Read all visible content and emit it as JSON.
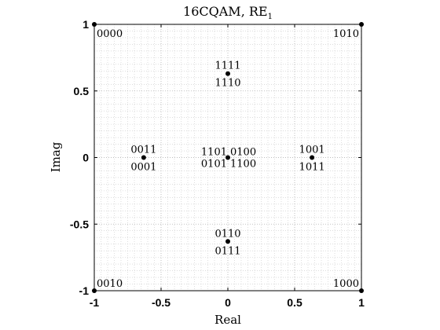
{
  "chart_data": {
    "type": "scatter",
    "title": "16CQAM, RE",
    "title_subscript": "1",
    "xlabel": "Real",
    "ylabel": "Imag",
    "xlim": [
      -1,
      1
    ],
    "ylim": [
      -1,
      1
    ],
    "x_ticks": [
      -1,
      -0.5,
      0,
      0.5,
      1
    ],
    "y_ticks": [
      -1,
      -0.5,
      0,
      0.5,
      1
    ],
    "x_tick_labels": [
      "-1",
      "-0.5",
      "0",
      "0.5",
      "1"
    ],
    "y_tick_labels": [
      "-1",
      "-0.5",
      "0",
      "0.5",
      "1"
    ],
    "grid": true,
    "minor_grid": true,
    "point_color": "#000000",
    "points": [
      {
        "x": -1,
        "y": 1,
        "labels": [
          "0000"
        ]
      },
      {
        "x": 1,
        "y": 1,
        "labels": [
          "1010"
        ]
      },
      {
        "x": -1,
        "y": -1,
        "labels": [
          "0010"
        ]
      },
      {
        "x": 1,
        "y": -1,
        "labels": [
          "1000"
        ]
      },
      {
        "x": 0,
        "y": 0.63,
        "labels": [
          "1111",
          "1110"
        ]
      },
      {
        "x": 0,
        "y": -0.63,
        "labels": [
          "0110",
          "0111"
        ]
      },
      {
        "x": -0.63,
        "y": 0,
        "labels": [
          "0011",
          "0001"
        ]
      },
      {
        "x": 0.63,
        "y": 0,
        "labels": [
          "1001",
          "1011"
        ]
      },
      {
        "x": 0,
        "y": 0,
        "labels": [
          "1101",
          "0100",
          "0101",
          "1100"
        ]
      }
    ]
  }
}
